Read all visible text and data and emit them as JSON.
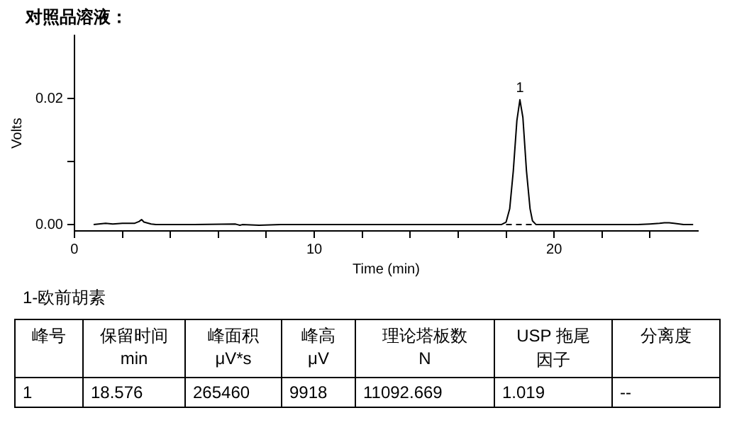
{
  "chart_data": [
    {
      "type": "line",
      "title": "对照品溶液：",
      "xlabel": "Time (min)",
      "ylabel": "Volts",
      "series": [
        {
          "color": "#000000",
          "x": [
            0.8,
            1.3,
            1.6,
            2.0,
            2.5,
            2.7,
            2.8,
            2.9,
            3.2,
            3.4,
            5.0,
            6.7,
            6.8,
            6.9,
            7.0,
            7.7,
            8.6,
            10.0,
            13.5,
            15.0,
            17.8,
            18.0,
            18.15,
            18.3,
            18.45,
            18.576,
            18.7,
            18.85,
            19.0,
            19.1,
            19.25,
            20.0,
            23.5,
            24.0,
            24.4,
            24.6,
            24.8,
            25.0,
            25.4,
            25.8
          ],
          "values": [
            0,
            0.0002,
            0.0001,
            0.0002,
            0.0002,
            0.0005,
            0.0008,
            0.0004,
            0.0001,
            0,
            0,
            0.0001,
            0,
            -0.0001,
            0,
            -0.0001,
            0,
            0,
            0,
            0,
            0,
            0.0004,
            0.0025,
            0.0085,
            0.0165,
            0.0198,
            0.017,
            0.0085,
            0.0025,
            0.0006,
            0,
            0,
            0,
            0.0001,
            0.0002,
            0.0003,
            0.0003,
            0.0002,
            0,
            0
          ]
        },
        {
          "color": "#000000",
          "line_style": "dashed",
          "x": [
            18.0,
            19.1
          ],
          "values": [
            0,
            0
          ]
        }
      ],
      "xlim": [
        0,
        26
      ],
      "xticks": [
        0,
        {
          "value": 2,
          "label": null
        },
        {
          "value": 4,
          "label": null
        },
        {
          "value": 6,
          "label": null
        },
        {
          "value": 8,
          "label": null
        },
        10,
        {
          "value": 12,
          "label": null
        },
        {
          "value": 14,
          "label": null
        },
        {
          "value": 16,
          "label": null
        },
        {
          "value": 18,
          "label": null
        },
        20,
        {
          "value": 22,
          "label": null
        },
        {
          "value": 24,
          "label": null
        }
      ],
      "ylim": [
        -0.001,
        0.03
      ],
      "yticks": [
        {
          "value": 0,
          "label": "0.00"
        },
        {
          "value": 0.01,
          "label": null
        },
        {
          "value": 0.02,
          "label": "0.02"
        }
      ],
      "annotations": [
        {
          "text": "1",
          "x": 18.576,
          "y": 0.0198
        }
      ],
      "grid": false,
      "legend": false,
      "marker": "none"
    },
    {
      "type": "other",
      "title": "1-欧前胡素",
      "categories": [
        "峰号",
        "保留时间\nmin",
        "峰面积\nμV*s",
        "峰高\nμV",
        "理论塔板数\nN",
        "USP 拖尾因子",
        "分离度"
      ],
      "annotations": [
        "1",
        "18.576",
        "265460",
        "9918",
        "11092.669",
        "1.019",
        "--"
      ]
    }
  ]
}
